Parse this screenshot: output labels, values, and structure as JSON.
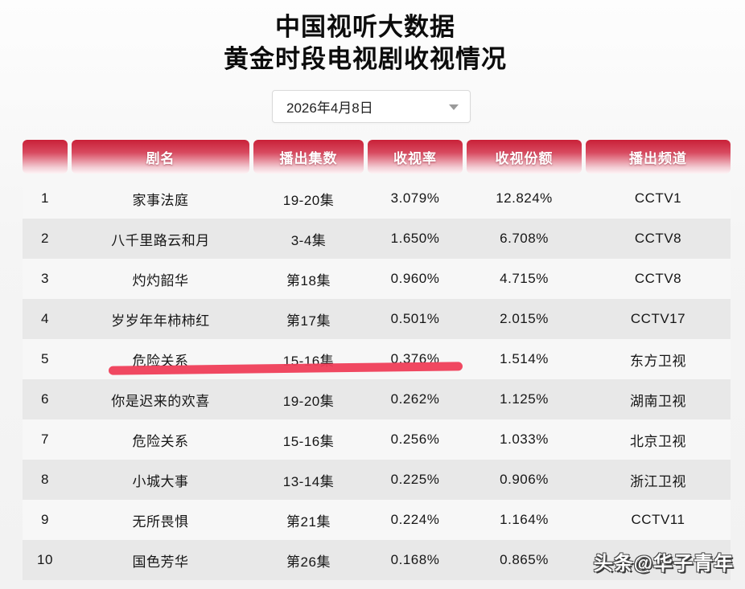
{
  "page": {
    "title_line1": "中国视听大数据",
    "title_line2": "黄金时段电视剧收视情况"
  },
  "date_selector": {
    "value": "2026年4月8日"
  },
  "table": {
    "headers": [
      "",
      "剧名",
      "播出集数",
      "收视率",
      "收视份额",
      "播出频道"
    ],
    "rows": [
      {
        "rank": "1",
        "name": "家事法庭",
        "episodes": "19-20集",
        "rating": "3.079%",
        "share": "12.824%",
        "channel": "CCTV1"
      },
      {
        "rank": "2",
        "name": "八千里路云和月",
        "episodes": "3-4集",
        "rating": "1.650%",
        "share": "6.708%",
        "channel": "CCTV8"
      },
      {
        "rank": "3",
        "name": "灼灼韶华",
        "episodes": "第18集",
        "rating": "0.960%",
        "share": "4.715%",
        "channel": "CCTV8"
      },
      {
        "rank": "4",
        "name": "岁岁年年柿柿红",
        "episodes": "第17集",
        "rating": "0.501%",
        "share": "2.015%",
        "channel": "CCTV17"
      },
      {
        "rank": "5",
        "name": "危险关系",
        "episodes": "15-16集",
        "rating": "0.376%",
        "share": "1.514%",
        "channel": "东方卫视"
      },
      {
        "rank": "6",
        "name": "你是迟来的欢喜",
        "episodes": "19-20集",
        "rating": "0.262%",
        "share": "1.125%",
        "channel": "湖南卫视"
      },
      {
        "rank": "7",
        "name": "危险关系",
        "episodes": "15-16集",
        "rating": "0.256%",
        "share": "1.033%",
        "channel": "北京卫视"
      },
      {
        "rank": "8",
        "name": "小城大事",
        "episodes": "13-14集",
        "rating": "0.225%",
        "share": "0.906%",
        "channel": "浙江卫视"
      },
      {
        "rank": "9",
        "name": "无所畏惧",
        "episodes": "第21集",
        "rating": "0.224%",
        "share": "1.164%",
        "channel": "CCTV11"
      },
      {
        "rank": "10",
        "name": "国色芳华",
        "episodes": "第26集",
        "rating": "0.168%",
        "share": "0.865%",
        "channel": ""
      }
    ],
    "highlight": {
      "row_rank": "5",
      "color": "#ef3e58"
    }
  },
  "watermark": {
    "text": "头条@华子青年"
  },
  "colors": {
    "header_red_top": "#c92138",
    "header_red_bottom": "#fdf2f4",
    "row_odd": "#f7f7f7",
    "row_even": "#e8e8e8",
    "highlight_marker": "#ef3e58"
  }
}
